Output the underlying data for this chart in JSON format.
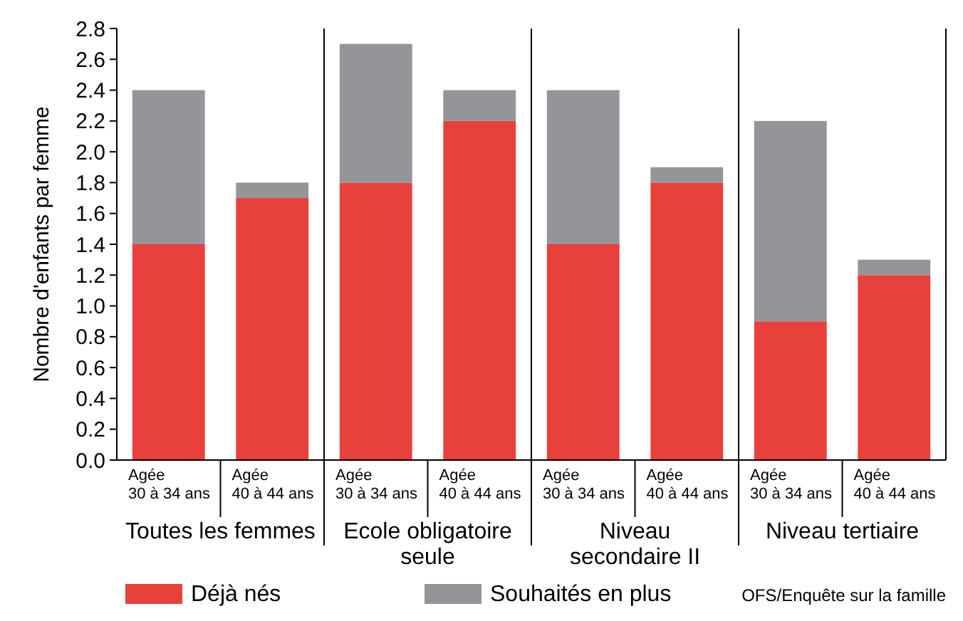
{
  "chart_data": {
    "type": "bar",
    "stacked": true,
    "ylabel": "Nombre d'enfants par femme",
    "categories": [
      "Agée 30 à 34 ans",
      "Agée 40 à 44 ans",
      "Agée 30 à 34 ans",
      "Agée 40 à 44 ans",
      "Agée 30 à 34 ans",
      "Agée 40 à 44 ans",
      "Agée 30 à 34 ans",
      "Agée 40 à 44 ans"
    ],
    "series": [
      {
        "name": "Déjà nés",
        "color": "#e8403a",
        "values": [
          1.4,
          1.7,
          1.8,
          2.2,
          1.4,
          1.8,
          0.9,
          1.2
        ]
      },
      {
        "name": "Souhaités en plus",
        "color": "#949599",
        "values": [
          1.0,
          0.1,
          0.9,
          0.2,
          1.0,
          0.1,
          1.3,
          0.1
        ]
      }
    ],
    "ylim": [
      0,
      2.8
    ],
    "yticks": [
      {
        "value": 0,
        "label": "0.0"
      },
      {
        "value": 0.2,
        "label": "0.2"
      },
      {
        "value": 0.4,
        "label": "0.4"
      },
      {
        "value": 0.6,
        "label": "0.6"
      },
      {
        "value": 0.8,
        "label": "0.8"
      },
      {
        "value": 1,
        "label": "1.0"
      },
      {
        "value": 1.2,
        "label": "1.2"
      },
      {
        "value": 1.4,
        "label": "1.4"
      },
      {
        "value": 1.6,
        "label": "1.6"
      },
      {
        "value": 1.8,
        "label": "1.8"
      },
      {
        "value": 2,
        "label": "2.0"
      },
      {
        "value": 2.2,
        "label": "2.2"
      },
      {
        "value": 2.4,
        "label": "2.4"
      },
      {
        "value": 2.6,
        "label": "2.6"
      },
      {
        "value": 2.8,
        "label": "2.8"
      }
    ],
    "grid": false,
    "legend": "bottom",
    "annotations": [
      "Toutes les femmes",
      "Ecole obligatoire\nseule",
      "Niveau\nsecondaire II",
      "Niveau tertiaire",
      "OFS/Enquête sur la famille"
    ]
  }
}
